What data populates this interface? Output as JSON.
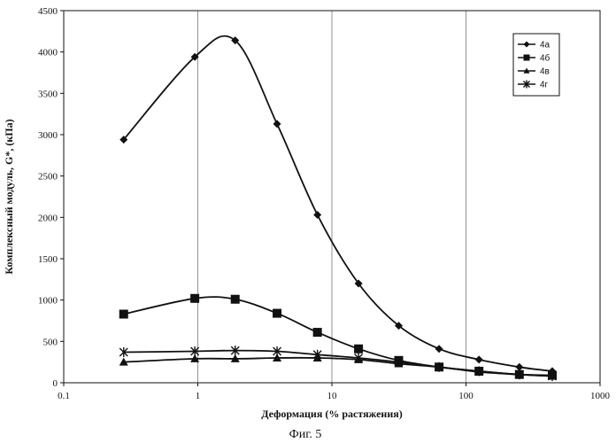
{
  "chart_data": {
    "type": "line",
    "xscale": "log",
    "xlim": [
      0.1,
      1000
    ],
    "ylim": [
      0,
      4500
    ],
    "x_ticks": [
      "0.1",
      "1",
      "10",
      "100",
      "1000"
    ],
    "y_ticks": [
      "0",
      "500",
      "1000",
      "1500",
      "2000",
      "2500",
      "3000",
      "3500",
      "4000",
      "4500"
    ],
    "xlabel": "Деформация (% растяжения)",
    "ylabel": "Комплексный модуль, G*, (кПа)",
    "caption": "Фиг. 5",
    "grid": "vertical",
    "legend_position": "top-right",
    "line_color": "#111111",
    "series": [
      {
        "name": "4а",
        "marker": "diamond",
        "x": [
          0.28,
          0.95,
          1.9,
          3.9,
          7.8,
          15.8,
          31.5,
          63,
          125,
          250,
          440
        ],
        "y": [
          2940,
          3940,
          4140,
          3130,
          2030,
          1200,
          690,
          410,
          280,
          190,
          140
        ]
      },
      {
        "name": "4б",
        "marker": "square",
        "x": [
          0.28,
          0.95,
          1.9,
          3.9,
          7.8,
          15.8,
          31.5,
          63,
          125,
          250,
          440
        ],
        "y": [
          830,
          1020,
          1010,
          840,
          610,
          410,
          270,
          190,
          140,
          100,
          90
        ]
      },
      {
        "name": "4в",
        "marker": "triangle",
        "x": [
          0.28,
          0.95,
          1.9,
          3.9,
          7.8,
          15.8,
          31.5,
          63,
          125,
          250,
          440
        ],
        "y": [
          250,
          290,
          290,
          300,
          300,
          280,
          230,
          190,
          130,
          100,
          80
        ]
      },
      {
        "name": "4г",
        "marker": "asterisk",
        "x": [
          0.28,
          0.95,
          1.9,
          3.9,
          7.8,
          15.8,
          31.5,
          63,
          125,
          250,
          440
        ],
        "y": [
          370,
          380,
          390,
          380,
          340,
          300,
          250,
          190,
          140,
          100,
          80
        ]
      }
    ]
  }
}
